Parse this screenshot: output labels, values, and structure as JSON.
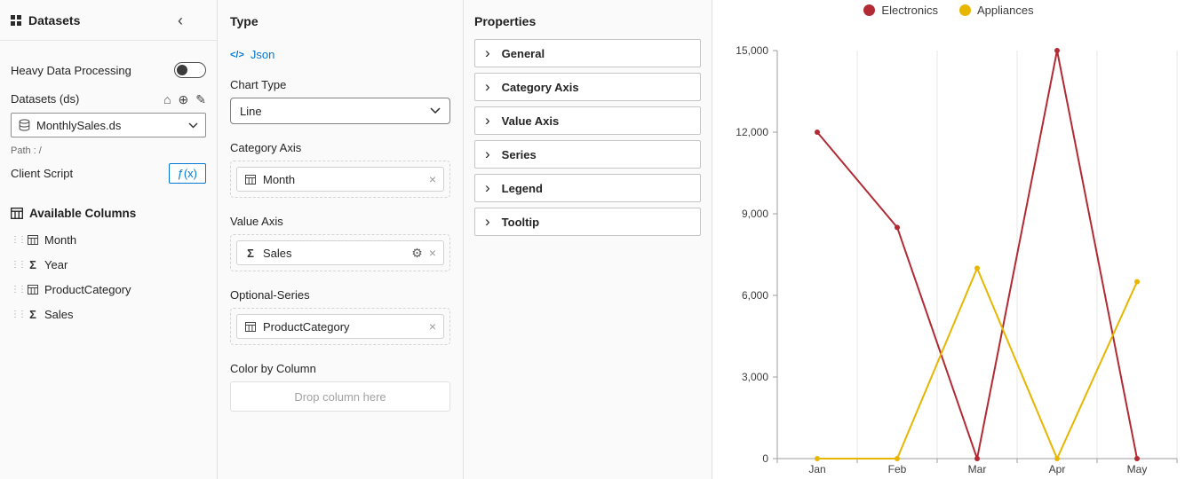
{
  "sidebar": {
    "title": "Datasets",
    "heavy_data_processing": "Heavy Data Processing",
    "datasets_label": "Datasets (ds)",
    "dataset_selected": "MonthlySales.ds",
    "path_label": "Path : /",
    "client_script_label": "Client Script",
    "fx_label": "ƒ(x)",
    "available_columns_title": "Available Columns",
    "columns": [
      {
        "name": "Month",
        "kind": "dimension"
      },
      {
        "name": "Year",
        "kind": "measure"
      },
      {
        "name": "ProductCategory",
        "kind": "dimension"
      },
      {
        "name": "Sales",
        "kind": "measure"
      }
    ]
  },
  "type_panel": {
    "title": "Type",
    "json_label": "Json",
    "chart_type_label": "Chart Type",
    "chart_type_value": "Line",
    "category_axis_label": "Category Axis",
    "category_axis_field": "Month",
    "value_axis_label": "Value Axis",
    "value_axis_field": "Sales",
    "optional_series_label": "Optional-Series",
    "optional_series_field": "ProductCategory",
    "color_by_column_label": "Color by Column",
    "drop_placeholder": "Drop column here"
  },
  "properties_panel": {
    "title": "Properties",
    "sections": [
      "General",
      "Category Axis",
      "Value Axis",
      "Series",
      "Legend",
      "Tooltip"
    ]
  },
  "icons": {
    "home": "⌂",
    "add": "⊕",
    "edit": "✎",
    "collapse": "‹",
    "chevron_right": "›",
    "drag": "⋮⋮",
    "sigma": "Σ",
    "code": "</>",
    "gear": "⚙",
    "close": "×"
  },
  "chart_data": {
    "type": "line",
    "categories": [
      "Jan",
      "Feb",
      "Mar",
      "Apr",
      "May"
    ],
    "series": [
      {
        "name": "Electronics",
        "color": "#b12a34",
        "values": [
          12000,
          8500,
          0,
          15000,
          0
        ]
      },
      {
        "name": "Appliances",
        "color": "#e6b600",
        "values": [
          0,
          0,
          7000,
          0,
          6500
        ]
      }
    ],
    "ylim": [
      0,
      15000
    ],
    "yticks": [
      0,
      3000,
      6000,
      9000,
      12000,
      15000
    ],
    "grid": "vertical",
    "legend_position": "top"
  }
}
